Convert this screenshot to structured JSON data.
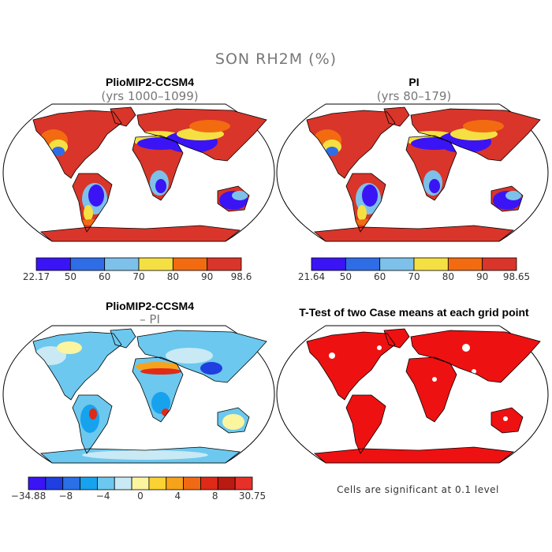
{
  "title": "SON RH2M (%)",
  "panels": [
    {
      "id": "pliomip",
      "title": "PlioMIP2-CCSM4",
      "subtitle": "(yrs 1000–1099)",
      "colorbar": {
        "colors": [
          "#3b14f5",
          "#2f6de6",
          "#7dc1ea",
          "#f5e043",
          "#f26b10",
          "#d9352a"
        ],
        "labels": [
          "22.17",
          "50",
          "60",
          "70",
          "80",
          "90",
          "98.6"
        ]
      }
    },
    {
      "id": "pi",
      "title": "PI",
      "subtitle": "(yrs 80–179)",
      "colorbar": {
        "colors": [
          "#3b14f5",
          "#2f6de6",
          "#7dc1ea",
          "#f5e043",
          "#f26b10",
          "#d9352a"
        ],
        "labels": [
          "21.64",
          "50",
          "60",
          "70",
          "80",
          "90",
          "98.65"
        ]
      }
    },
    {
      "id": "diff",
      "title": "PlioMIP2-CCSM4",
      "subtitle": "– PI",
      "colorbar": {
        "colors": [
          "#3b14f5",
          "#1f3fe0",
          "#2a70e6",
          "#17a2ee",
          "#6cc8ee",
          "#c9e9f5",
          "#fbf5a0",
          "#fbd233",
          "#f7a21b",
          "#f06a13",
          "#e02a18",
          "#b91a12",
          "#e8302a"
        ],
        "labels": [
          "−34.88",
          "−8",
          "−4",
          "0",
          "4",
          "8",
          "30.75"
        ]
      }
    },
    {
      "id": "ttest",
      "title": "T-Test of two Case means at each grid point",
      "subtitle": "",
      "note": "Cells are significant at 0.1 level"
    }
  ]
}
